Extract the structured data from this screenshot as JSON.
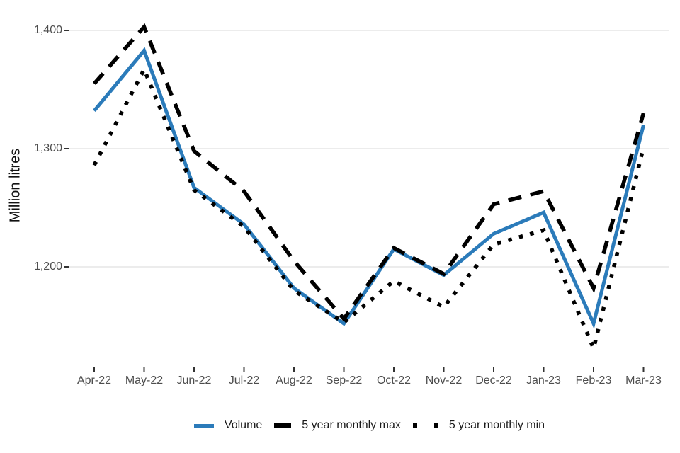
{
  "chart_data": {
    "type": "line",
    "title": "",
    "xlabel": "",
    "ylabel": "Million litres",
    "categories": [
      "Apr-22",
      "May-22",
      "Jun-22",
      "Jul-22",
      "Aug-22",
      "Sep-22",
      "Oct-22",
      "Nov-22",
      "Dec-22",
      "Jan-23",
      "Feb-23",
      "Mar-23"
    ],
    "series": [
      {
        "name": "Volume",
        "style": "solid",
        "color": "#2b7bba",
        "values": [
          1332,
          1383,
          1267,
          1236,
          1182,
          1152,
          1215,
          1193,
          1228,
          1246,
          1152,
          1320
        ]
      },
      {
        "name": "5 year monthly max",
        "style": "dashed",
        "color": "#000000",
        "values": [
          1355,
          1403,
          1298,
          1264,
          1205,
          1156,
          1216,
          1194,
          1253,
          1264,
          1182,
          1330
        ]
      },
      {
        "name": "5 year monthly min",
        "style": "dotted",
        "color": "#000000",
        "values": [
          1286,
          1367,
          1265,
          1234,
          1180,
          1153,
          1188,
          1166,
          1219,
          1231,
          1131,
          1301
        ]
      }
    ],
    "yticks": [
      1200,
      1300,
      1400
    ],
    "ytick_labels": [
      "1,200",
      "1,300",
      "1,400"
    ],
    "ylim": [
      1120,
      1417
    ],
    "grid": "horizontal-only",
    "legend_position": "bottom",
    "colors": {
      "grid": "#e6e6e6",
      "tick_mark": "#333333",
      "tick_text": "#4d4d4d",
      "axis_title": "#111111"
    }
  }
}
